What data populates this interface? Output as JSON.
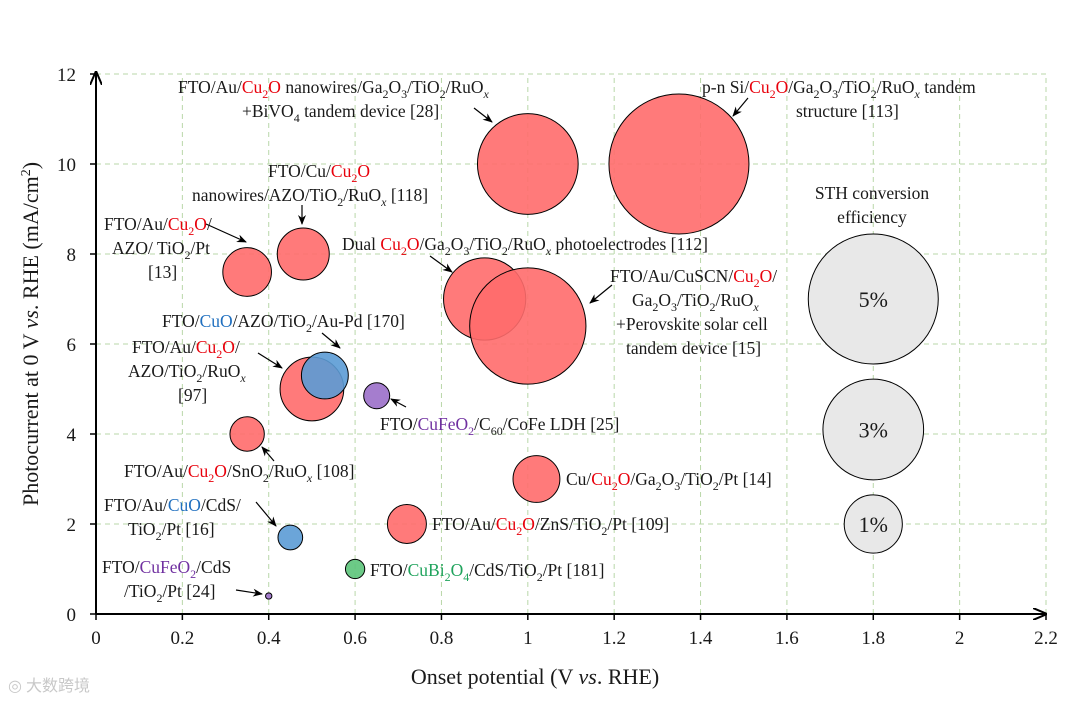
{
  "chart_data": {
    "type": "bubble",
    "xlabel_prefix": "Onset potential (V ",
    "xlabel_italic": "vs",
    "xlabel_suffix": ". RHE)",
    "ylabel_prefix": "Photocurrent at 0 V ",
    "ylabel_italic": "vs",
    "ylabel_mid": ". RHE (mA/cm",
    "ylabel_sup": "2",
    "ylabel_end": ")",
    "xlim": [
      0,
      2.2
    ],
    "ylim": [
      0,
      12
    ],
    "xticks": [
      0,
      0.2,
      0.4,
      0.6,
      0.8,
      1,
      1.2,
      1.4,
      1.6,
      1.8,
      2,
      2.2
    ],
    "xtick_labels": [
      "0",
      "0.2",
      "0.4",
      "0.6",
      "0.8",
      "1",
      "1.2",
      "1.4",
      "1.6",
      "1.8",
      "2",
      "2.2"
    ],
    "yticks": [
      0,
      2,
      4,
      6,
      8,
      10,
      12
    ],
    "ytick_labels": [
      "0",
      "2",
      "4",
      "6",
      "8",
      "10",
      "12"
    ],
    "grid": true,
    "colors": {
      "cu2o": "#ff6b6b",
      "cuo": "#5b9bd5",
      "cufeo2": "#9b6fc9",
      "cubi2o4": "#5cc47a",
      "legend": "#e8e8e8",
      "text_red": "#e8000b",
      "text_blue": "#1f6fbf",
      "text_purple": "#7030a0",
      "text_green": "#1fa35c"
    },
    "points": [
      {
        "id": "p-cu2o-gao-bivo4",
        "x": 1.0,
        "y": 10.0,
        "sth": 3.0,
        "group": "cu2o",
        "ref": "[28]"
      },
      {
        "id": "p-pn-si-tandem",
        "x": 1.35,
        "y": 10.0,
        "sth": 5.8,
        "group": "cu2o",
        "ref": "[113]"
      },
      {
        "id": "p-cu-cu2o-azo",
        "x": 0.48,
        "y": 8.0,
        "sth": 0.8,
        "group": "cu2o",
        "ref": "[118]"
      },
      {
        "id": "p-au-cu2o-azo-pt",
        "x": 0.35,
        "y": 7.6,
        "sth": 0.7,
        "group": "cu2o",
        "ref": "[13]"
      },
      {
        "id": "p-dual-cu2o",
        "x": 0.9,
        "y": 7.0,
        "sth": 2.0,
        "group": "cu2o",
        "ref": "[112]"
      },
      {
        "id": "p-perovskite-tandem",
        "x": 1.0,
        "y": 6.4,
        "sth": 4.0,
        "group": "cu2o",
        "ref": "[15]"
      },
      {
        "id": "p-au-cu2o-azo-ruox",
        "x": 0.5,
        "y": 5.0,
        "sth": 1.2,
        "group": "cu2o",
        "ref": "[97]"
      },
      {
        "id": "p-cuo-au-pd",
        "x": 0.53,
        "y": 5.3,
        "sth": 0.65,
        "group": "cuo",
        "ref": "[170]"
      },
      {
        "id": "p-cufeo2-c60",
        "x": 0.65,
        "y": 4.85,
        "sth": 0.2,
        "group": "cufeo2",
        "ref": "[25]"
      },
      {
        "id": "p-au-cu2o-sno2",
        "x": 0.35,
        "y": 4.0,
        "sth": 0.35,
        "group": "cu2o",
        "ref": "[108]"
      },
      {
        "id": "p-cu-cu2o-pt",
        "x": 1.02,
        "y": 3.0,
        "sth": 0.65,
        "group": "cu2o",
        "ref": "[14]"
      },
      {
        "id": "p-au-cu2o-zns",
        "x": 0.72,
        "y": 2.0,
        "sth": 0.45,
        "group": "cu2o",
        "ref": "[109]"
      },
      {
        "id": "p-au-cuo-cds",
        "x": 0.45,
        "y": 1.7,
        "sth": 0.18,
        "group": "cuo",
        "ref": "[16]"
      },
      {
        "id": "p-cubi2o4-cds",
        "x": 0.6,
        "y": 1.0,
        "sth": 0.11,
        "group": "cubi2o4",
        "ref": "[181]"
      },
      {
        "id": "p-cufeo2-cds",
        "x": 0.4,
        "y": 0.4,
        "sth": 0.012,
        "group": "cufeo2",
        "ref": "[24]"
      }
    ],
    "legend": {
      "title_line1": "STH conversion",
      "title_line2": "efficiency",
      "x": 1.8,
      "items": [
        {
          "label": "5%",
          "sth": 5.0,
          "y": 7.0
        },
        {
          "label": "3%",
          "sth": 3.0,
          "y": 4.1
        },
        {
          "label": "1%",
          "sth": 1.0,
          "y": 2.0
        }
      ]
    }
  },
  "watermark": "大数跨境"
}
